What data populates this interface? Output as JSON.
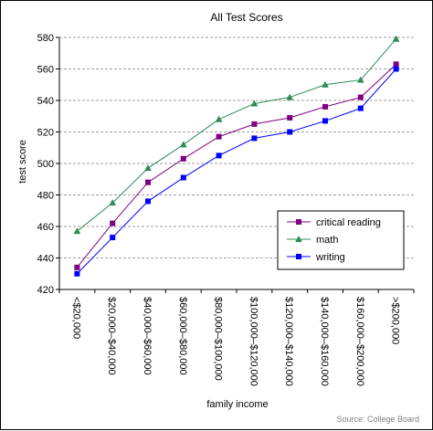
{
  "chart_data": {
    "type": "line",
    "title": "All Test Scores",
    "xlabel": "family income",
    "ylabel": "test score",
    "source": "Source: College Board",
    "ylim": [
      420,
      580
    ],
    "yticks": [
      420,
      440,
      460,
      480,
      500,
      520,
      540,
      560,
      580
    ],
    "grid": true,
    "legend_position": "bottom-right",
    "categories": [
      "<$20,000",
      "$20,000–$40,000",
      "$40,000–$60,000",
      "$60,000–$80,000",
      "$80,000–$100,000",
      "$100,000–$120,000",
      "$120,000–$140,000",
      "$140,000–$160,000",
      "$160,000–$200,000",
      ">$200,000"
    ],
    "series": [
      {
        "name": "critical reading",
        "color": "#800080",
        "marker": "square",
        "values": [
          434,
          462,
          488,
          503,
          517,
          525,
          529,
          536,
          542,
          563
        ]
      },
      {
        "name": "math",
        "color": "#2E8B57",
        "marker": "triangle",
        "values": [
          457,
          475,
          497,
          512,
          528,
          538,
          542,
          550,
          553,
          579
        ]
      },
      {
        "name": "writing",
        "color": "#0000FF",
        "marker": "square",
        "values": [
          430,
          453,
          476,
          491,
          505,
          516,
          520,
          527,
          535,
          560
        ]
      }
    ]
  }
}
